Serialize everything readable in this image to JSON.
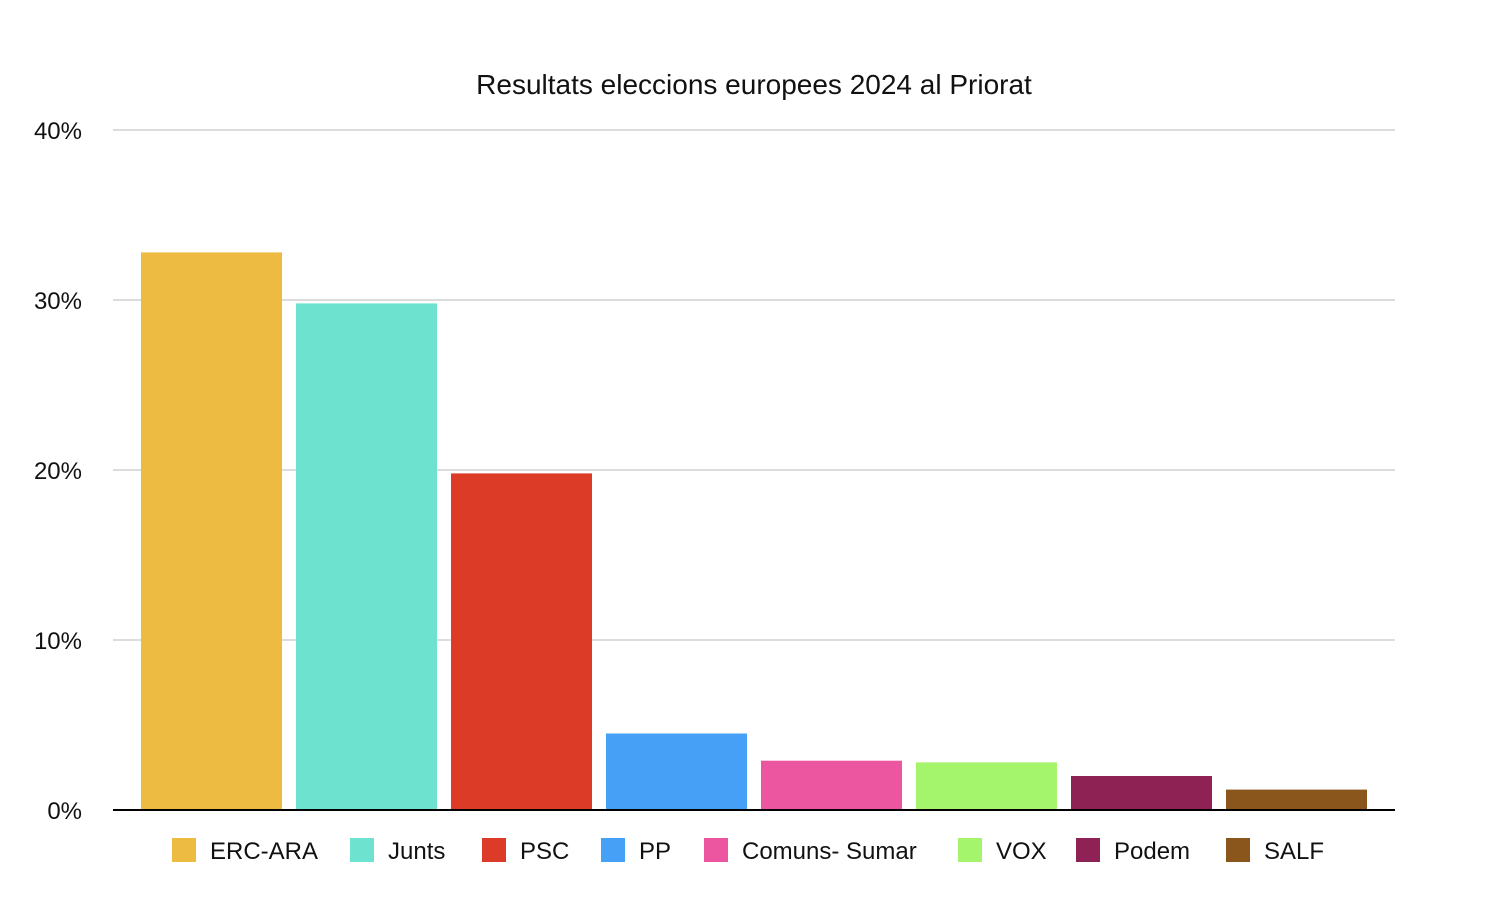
{
  "chart_data": {
    "type": "bar",
    "title": "Resultats eleccions europees 2024 al Priorat",
    "xlabel": "",
    "ylabel": "",
    "ylim": [
      0,
      40
    ],
    "yticks": [
      0,
      10,
      20,
      30,
      40
    ],
    "ytick_labels": [
      "0%",
      "10%",
      "20%",
      "30%",
      "40%"
    ],
    "grid": true,
    "legend_position": "bottom",
    "categories": [
      "ERC-ARA",
      "Junts",
      "PSC",
      "PP",
      "Comuns- Sumar",
      "VOX",
      "Podem",
      "SALF"
    ],
    "values": [
      32.8,
      29.8,
      19.8,
      4.5,
      2.9,
      2.8,
      2.0,
      1.2
    ],
    "colors": [
      "#EDBB41",
      "#6DE2CF",
      "#DB3B27",
      "#46A0F6",
      "#EC56A0",
      "#A4F46C",
      "#8E2254",
      "#8B561C"
    ]
  }
}
